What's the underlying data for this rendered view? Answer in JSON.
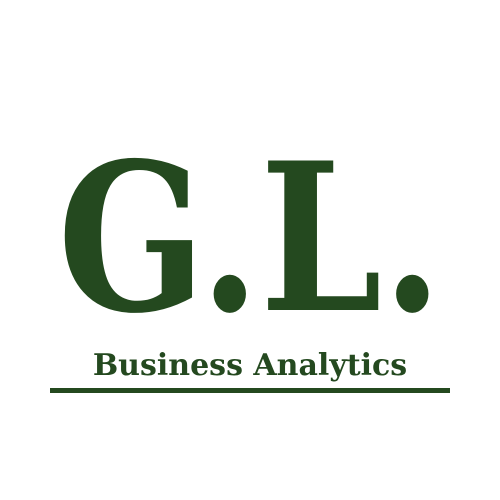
{
  "logo": {
    "monogram": "G.L.",
    "tagline": "Business Analytics",
    "color": "#24491f",
    "background": "#ffffff"
  }
}
